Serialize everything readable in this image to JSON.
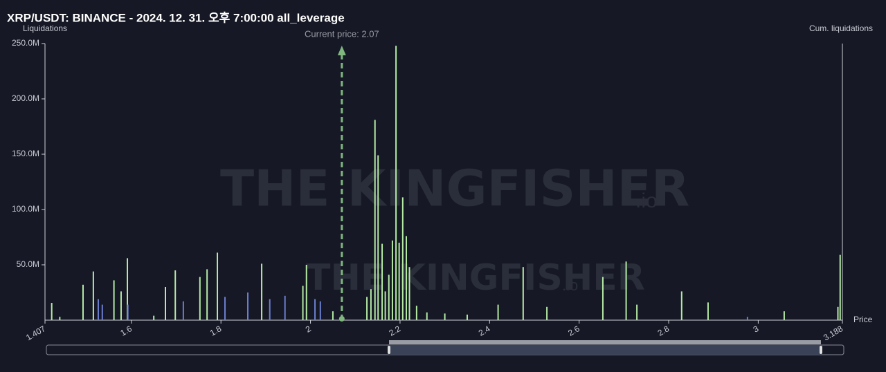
{
  "chart_data": {
    "type": "bar",
    "title": "XRP/USDT: BINANCE - 2024. 12. 31. 오후 7:00:00 all_leverage",
    "y_label": "Liquidations",
    "y2_label": "Cum. liquidations",
    "x_label": "Price",
    "watermark": "THE KINGFISHER",
    "watermark_suffix": ".io",
    "current_price": {
      "value": 2.07,
      "label": "Current price: 2.07"
    },
    "current_price_color": "#7fb77e",
    "xlim": [
      1.407,
      3.188
    ],
    "xticks": [
      1.407,
      1.6,
      1.8,
      2,
      2.2,
      2.4,
      2.6,
      2.8,
      3,
      3.188
    ],
    "ylim": [
      0,
      250
    ],
    "yticks": [
      {
        "value": 50,
        "label": "50.0M"
      },
      {
        "value": 100,
        "label": "100.0M"
      },
      {
        "value": 150,
        "label": "150.0M"
      },
      {
        "value": 200,
        "label": "200.0M"
      },
      {
        "value": 250,
        "label": "250.0M"
      }
    ],
    "series": [
      {
        "color": "#b4eaa3",
        "x": [
          1.422,
          1.44,
          1.492,
          1.515,
          1.561,
          1.577,
          1.591,
          1.65,
          1.676,
          1.698,
          1.753,
          1.769,
          1.792,
          1.86,
          1.891,
          1.983,
          1.991,
          2.05,
          2.126,
          2.135,
          2.144,
          2.151,
          2.16,
          2.167,
          2.175,
          2.183,
          2.191,
          2.198,
          2.206,
          2.214,
          2.221,
          2.237,
          2.26,
          2.3,
          2.35,
          2.419,
          2.475,
          2.528,
          2.653,
          2.705,
          2.729,
          2.829,
          2.888,
          3.058,
          3.178,
          3.183
        ],
        "values": [
          15.6,
          3,
          32,
          44,
          36,
          26,
          56,
          4,
          30,
          45,
          39,
          46,
          61,
          6,
          51,
          31,
          50,
          8,
          21,
          28,
          181,
          149,
          69,
          26,
          41,
          72,
          248,
          70,
          111,
          76,
          48,
          13,
          7,
          6,
          5,
          14,
          48,
          12,
          39,
          53,
          14,
          26,
          16,
          8,
          12,
          59
        ]
      },
      {
        "color": "#6b7ed0",
        "x": [
          1.526,
          1.535,
          1.592,
          1.716,
          1.809,
          1.86,
          1.909,
          1.943,
          2.01,
          2.022,
          2.976
        ],
        "values": [
          19,
          14,
          14,
          17,
          21,
          25,
          19,
          22,
          19,
          17,
          3
        ]
      }
    ]
  }
}
